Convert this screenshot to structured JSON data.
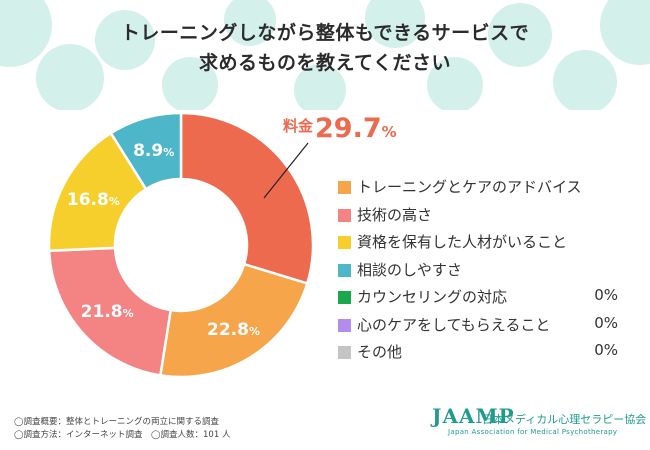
{
  "title": {
    "line1": "トレーニングしながら整体もできるサービスで",
    "line2": "求めるものを教えてください"
  },
  "chart_data": {
    "type": "pie",
    "title": "トレーニングしながら整体もできるサービスで求めるものを教えてください",
    "slices": [
      {
        "name": "料金",
        "value": 29.7,
        "label_num": "29.7",
        "label_pct": "%",
        "color": "#ee6a4f"
      },
      {
        "name": "トレーニングとケアのアドバイス",
        "value": 22.8,
        "label_num": "22.8",
        "label_pct": "%",
        "color": "#f7a54a"
      },
      {
        "name": "技術の高さ",
        "value": 21.8,
        "label_num": "21.8",
        "label_pct": "%",
        "color": "#f48383"
      },
      {
        "name": "資格を保有した人材がいること",
        "value": 16.8,
        "label_num": "16.8",
        "label_pct": "%",
        "color": "#f6cf2d"
      },
      {
        "name": "相談のしやすさ",
        "value": 8.9,
        "label_num": "8.9",
        "label_pct": "%",
        "color": "#4db6c8"
      }
    ],
    "callout": {
      "name": "料金",
      "num": "29.7",
      "pct": "%"
    }
  },
  "legend": [
    {
      "label": "トレーニングとケアのアドバイス",
      "value": "",
      "color": "#f7a54a"
    },
    {
      "label": "技術の高さ",
      "value": "",
      "color": "#f48383"
    },
    {
      "label": "資格を保有した人材がいること",
      "value": "",
      "color": "#f6cf2d"
    },
    {
      "label": "相談のしやすさ",
      "value": "",
      "color": "#4db6c8"
    },
    {
      "label": "カウンセリングの対応",
      "value": "0%",
      "color": "#19a84b"
    },
    {
      "label": "心のケアをしてもらえること",
      "value": "0%",
      "color": "#b48cf0"
    },
    {
      "label": "その他",
      "value": "0%",
      "color": "#c4c4c4"
    }
  ],
  "footnotes": {
    "line1": "◯調査概要：整体とトレーニングの両立に関する調査",
    "line2": "◯調査方法：インターネット調査　◯調査人数：101 人"
  },
  "logo": {
    "main": "JAAMP",
    "jp": "日本メディカル心理セラピー協会",
    "en": "Japan Association for Medical Psychotherapy"
  },
  "colors": {
    "bubble": "#d3f0ea",
    "accent": "#ee6a4f",
    "brand": "#1f9c8c"
  }
}
